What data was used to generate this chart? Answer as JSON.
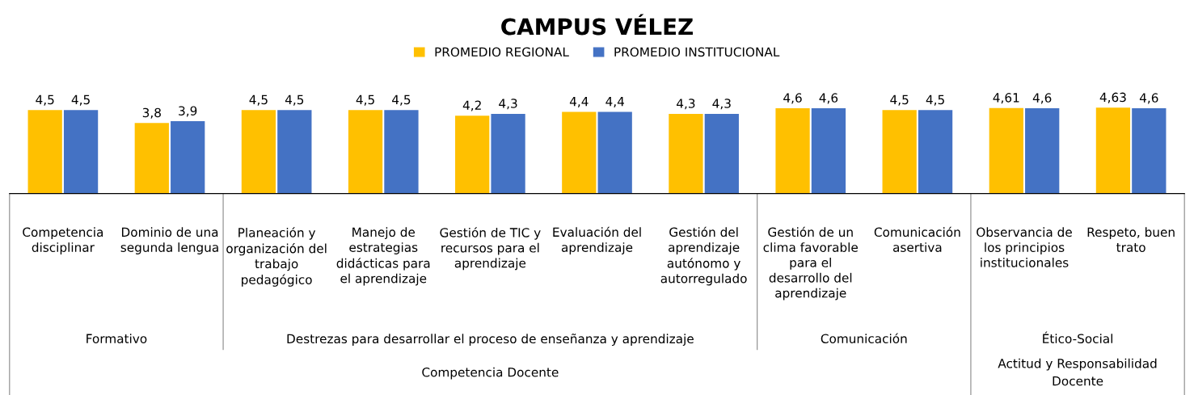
{
  "chart_data": {
    "type": "bar",
    "title": "CAMPUS VÉLEZ",
    "categories": [
      "Competencia\ndisciplinar",
      "Dominio de una\nsegunda lengua",
      "Planeación y\norganización del\ntrabajo\npedagógico",
      "Manejo de\nestrategias\ndidácticas para\nel aprendizaje",
      "Gestión de TIC y\nrecursos para el\naprendizaje",
      "Evaluación del\naprendizaje",
      "Gestión del\naprendizaje\nautónomo y\nautorregulado",
      "Gestión de un\nclima favorable\npara el\ndesarrollo del\naprendizaje",
      "Comunicación\nasertiva",
      "Observancia de\nlos principios\ninstitucionales",
      "Respeto, buen\ntrato"
    ],
    "series": [
      {
        "name": "PROMEDIO REGIONAL",
        "color": "#ffc000",
        "values": [
          4.5,
          3.8,
          4.5,
          4.5,
          4.2,
          4.4,
          4.3,
          4.6,
          4.5,
          4.61,
          4.63
        ],
        "value_labels": [
          "4,5",
          "3,8",
          "4,5",
          "4,5",
          "4,2",
          "4,4",
          "4,3",
          "4,6",
          "4,5",
          "4,61",
          "4,63"
        ]
      },
      {
        "name": "PROMEDIO INSTITUCIONAL",
        "color": "#4472c4",
        "values": [
          4.5,
          3.9,
          4.5,
          4.5,
          4.3,
          4.4,
          4.3,
          4.6,
          4.5,
          4.6,
          4.6
        ],
        "value_labels": [
          "4,5",
          "3,9",
          "4,5",
          "4,5",
          "4,3",
          "4,4",
          "4,3",
          "4,6",
          "4,5",
          "4,6",
          "4,6"
        ]
      }
    ],
    "annotations": [
      "Formativo",
      "Destrezas para desarrollar el proceso de enseñanza y aprendizaje",
      "Comunicación",
      "Ético-Social",
      "Competencia Docente",
      "Actitud y Responsabilidad\nDocente"
    ],
    "legend": "top",
    "grid": false
  }
}
